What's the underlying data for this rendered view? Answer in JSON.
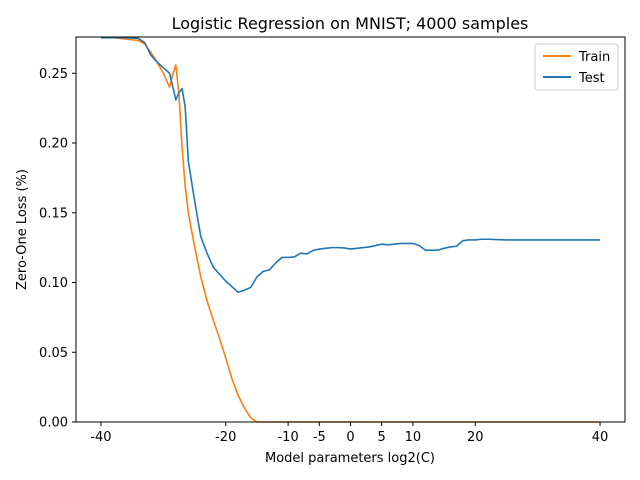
{
  "chart_data": {
    "type": "line",
    "title": "Logistic Regression on MNIST; 4000 samples",
    "xlabel": "Model parameters log2(C)",
    "ylabel": "Zero-One Loss (%)",
    "xlim": [
      -44,
      44
    ],
    "ylim": [
      0.0,
      0.276
    ],
    "xticks": [
      -40,
      -20,
      -10,
      -5,
      0,
      5,
      10,
      20,
      40
    ],
    "yticks": [
      0.0,
      0.05,
      0.1,
      0.15,
      0.2,
      0.25
    ],
    "ytick_labels": [
      "0.00",
      "0.05",
      "0.10",
      "0.15",
      "0.20",
      "0.25"
    ],
    "grid": false,
    "legend_position": "top-right",
    "series": [
      {
        "name": "Train",
        "color": "#ff7f0e",
        "x": [
          -40,
          -38,
          -36,
          -34,
          -33,
          -32,
          -31,
          -30,
          -29,
          -28.5,
          -28,
          -27.5,
          -27,
          -26.5,
          -26,
          -25,
          -24,
          -23,
          -22,
          -21,
          -20,
          -19,
          -18,
          -17,
          -16,
          -15,
          -14,
          -12,
          -10,
          0,
          10,
          20,
          30,
          40
        ],
        "y": [
          0.2755,
          0.2755,
          0.2745,
          0.2735,
          0.271,
          0.265,
          0.258,
          0.25,
          0.24,
          0.249,
          0.256,
          0.235,
          0.197,
          0.169,
          0.15,
          0.126,
          0.104,
          0.087,
          0.073,
          0.06,
          0.046,
          0.031,
          0.019,
          0.01,
          0.003,
          0.0,
          0.0,
          0.0,
          0.0,
          0.0,
          0.0,
          0.0,
          0.0,
          0.0
        ]
      },
      {
        "name": "Test",
        "color": "#1f77b4",
        "x": [
          -40,
          -38,
          -36,
          -34,
          -33,
          -32,
          -31,
          -30,
          -29.5,
          -29,
          -28.5,
          -28,
          -27.5,
          -27,
          -26.5,
          -26,
          -25,
          -24,
          -23,
          -22,
          -21,
          -20,
          -19,
          -18,
          -17,
          -16,
          -15,
          -14,
          -13,
          -12,
          -11,
          -10,
          -9,
          -8,
          -7,
          -6,
          -5,
          -4,
          -3,
          -2,
          -1,
          0,
          1,
          2,
          3,
          4,
          5,
          6,
          7,
          8,
          9,
          10,
          11,
          12,
          13,
          14,
          15,
          16,
          17,
          18,
          19,
          20,
          21,
          22,
          25,
          30,
          35,
          40
        ],
        "y": [
          0.2755,
          0.2755,
          0.2755,
          0.275,
          0.272,
          0.263,
          0.258,
          0.254,
          0.252,
          0.25,
          0.2405,
          0.231,
          0.236,
          0.239,
          0.226,
          0.187,
          0.159,
          0.133,
          0.121,
          0.111,
          0.106,
          0.101,
          0.097,
          0.093,
          0.0945,
          0.0965,
          0.104,
          0.108,
          0.109,
          0.114,
          0.118,
          0.118,
          0.1183,
          0.121,
          0.1205,
          0.123,
          0.124,
          0.1245,
          0.125,
          0.125,
          0.1248,
          0.124,
          0.1245,
          0.125,
          0.1255,
          0.1265,
          0.1275,
          0.127,
          0.1275,
          0.128,
          0.128,
          0.128,
          0.1265,
          0.1232,
          0.1232,
          0.1232,
          0.1245,
          0.1255,
          0.126,
          0.13,
          0.1305,
          0.1305,
          0.131,
          0.131,
          0.1305,
          0.1305,
          0.1305,
          0.1305
        ]
      }
    ]
  }
}
